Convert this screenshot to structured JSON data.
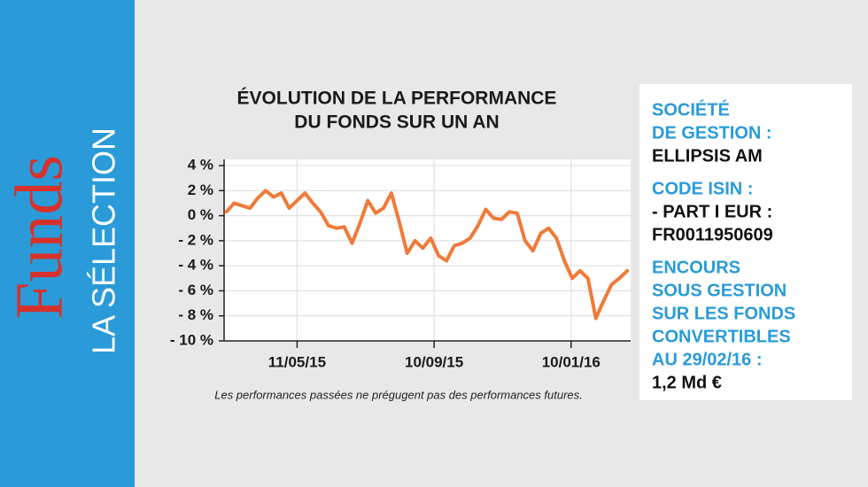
{
  "sidebar": {
    "brand": "Funds",
    "section": "LA SÉLECTION"
  },
  "chart_data": {
    "type": "line",
    "title": [
      "ÉVOLUTION DE LA PERFORMANCE",
      "DU FONDS SUR UN AN"
    ],
    "x": [
      "2015-03-09",
      "2015-03-16",
      "2015-03-23",
      "2015-03-30",
      "2015-04-06",
      "2015-04-13",
      "2015-04-20",
      "2015-04-27",
      "2015-05-04",
      "2015-05-11",
      "2015-05-18",
      "2015-05-25",
      "2015-06-01",
      "2015-06-08",
      "2015-06-15",
      "2015-06-22",
      "2015-06-29",
      "2015-07-06",
      "2015-07-13",
      "2015-07-20",
      "2015-07-27",
      "2015-08-03",
      "2015-08-10",
      "2015-08-17",
      "2015-08-24",
      "2015-08-31",
      "2015-09-07",
      "2015-09-14",
      "2015-09-21",
      "2015-09-28",
      "2015-10-05",
      "2015-10-12",
      "2015-10-19",
      "2015-10-26",
      "2015-11-02",
      "2015-11-09",
      "2015-11-16",
      "2015-11-23",
      "2015-11-30",
      "2015-12-07",
      "2015-12-14",
      "2015-12-21",
      "2015-12-28",
      "2016-01-04",
      "2016-01-11",
      "2016-01-18",
      "2016-01-25",
      "2016-02-01",
      "2016-02-08",
      "2016-02-15",
      "2016-02-22",
      "2016-02-29"
    ],
    "series": [
      {
        "color": "#f07a3a",
        "values": [
          0.3,
          1.0,
          0.8,
          0.6,
          1.4,
          2.0,
          1.5,
          1.8,
          0.6,
          1.2,
          1.8,
          1.0,
          0.3,
          -0.8,
          -1.0,
          -0.9,
          -2.2,
          -0.6,
          1.2,
          0.2,
          0.6,
          1.8,
          -0.5,
          -3.0,
          -2.0,
          -2.6,
          -1.8,
          -3.2,
          -3.6,
          -2.4,
          -2.2,
          -1.8,
          -0.8,
          0.5,
          -0.2,
          -0.3,
          0.3,
          0.2,
          -2.0,
          -2.8,
          -1.4,
          -1.0,
          -1.8,
          -3.6,
          -5.0,
          -4.4,
          -5.0,
          -8.2,
          -6.8,
          -5.5,
          -5.0,
          -4.4
        ]
      }
    ],
    "xlim": [
      "2015-03-07",
      "2016-03-03"
    ],
    "xticks": [
      {
        "value": "2015-05-11",
        "label": "11/05/15"
      },
      {
        "value": "2015-09-10",
        "label": "10/09/15"
      },
      {
        "value": "2016-01-10",
        "label": "10/01/16"
      }
    ],
    "ylim": [
      -10,
      4
    ],
    "yticks": [
      {
        "value": 4,
        "label": "4 %"
      },
      {
        "value": 2,
        "label": "2 %"
      },
      {
        "value": 0,
        "label": "0 %"
      },
      {
        "value": -2,
        "label": "- 2 %"
      },
      {
        "value": -4,
        "label": "- 4 %"
      },
      {
        "value": -6,
        "label": "- 6 %"
      },
      {
        "value": -8,
        "label": "- 8 %"
      },
      {
        "value": -10,
        "label": "- 10 %"
      }
    ],
    "grid": true,
    "note": "Les performances passées ne prégugent pas des performances futures."
  },
  "info": [
    {
      "label": [
        "SOCIÉTÉ",
        "DE GESTION :"
      ],
      "value": [
        "ELLIPSIS AM"
      ]
    },
    {
      "label": [
        "CODE ISIN :"
      ],
      "value": [
        "- PART I EUR :",
        "FR0011950609"
      ]
    },
    {
      "label": [
        "ENCOURS",
        "SOUS GESTION",
        "SUR LES FONDS",
        "CONVERTIBLES",
        "AU 29/02/16 :"
      ],
      "value": [
        "1,2 Md €"
      ]
    }
  ]
}
